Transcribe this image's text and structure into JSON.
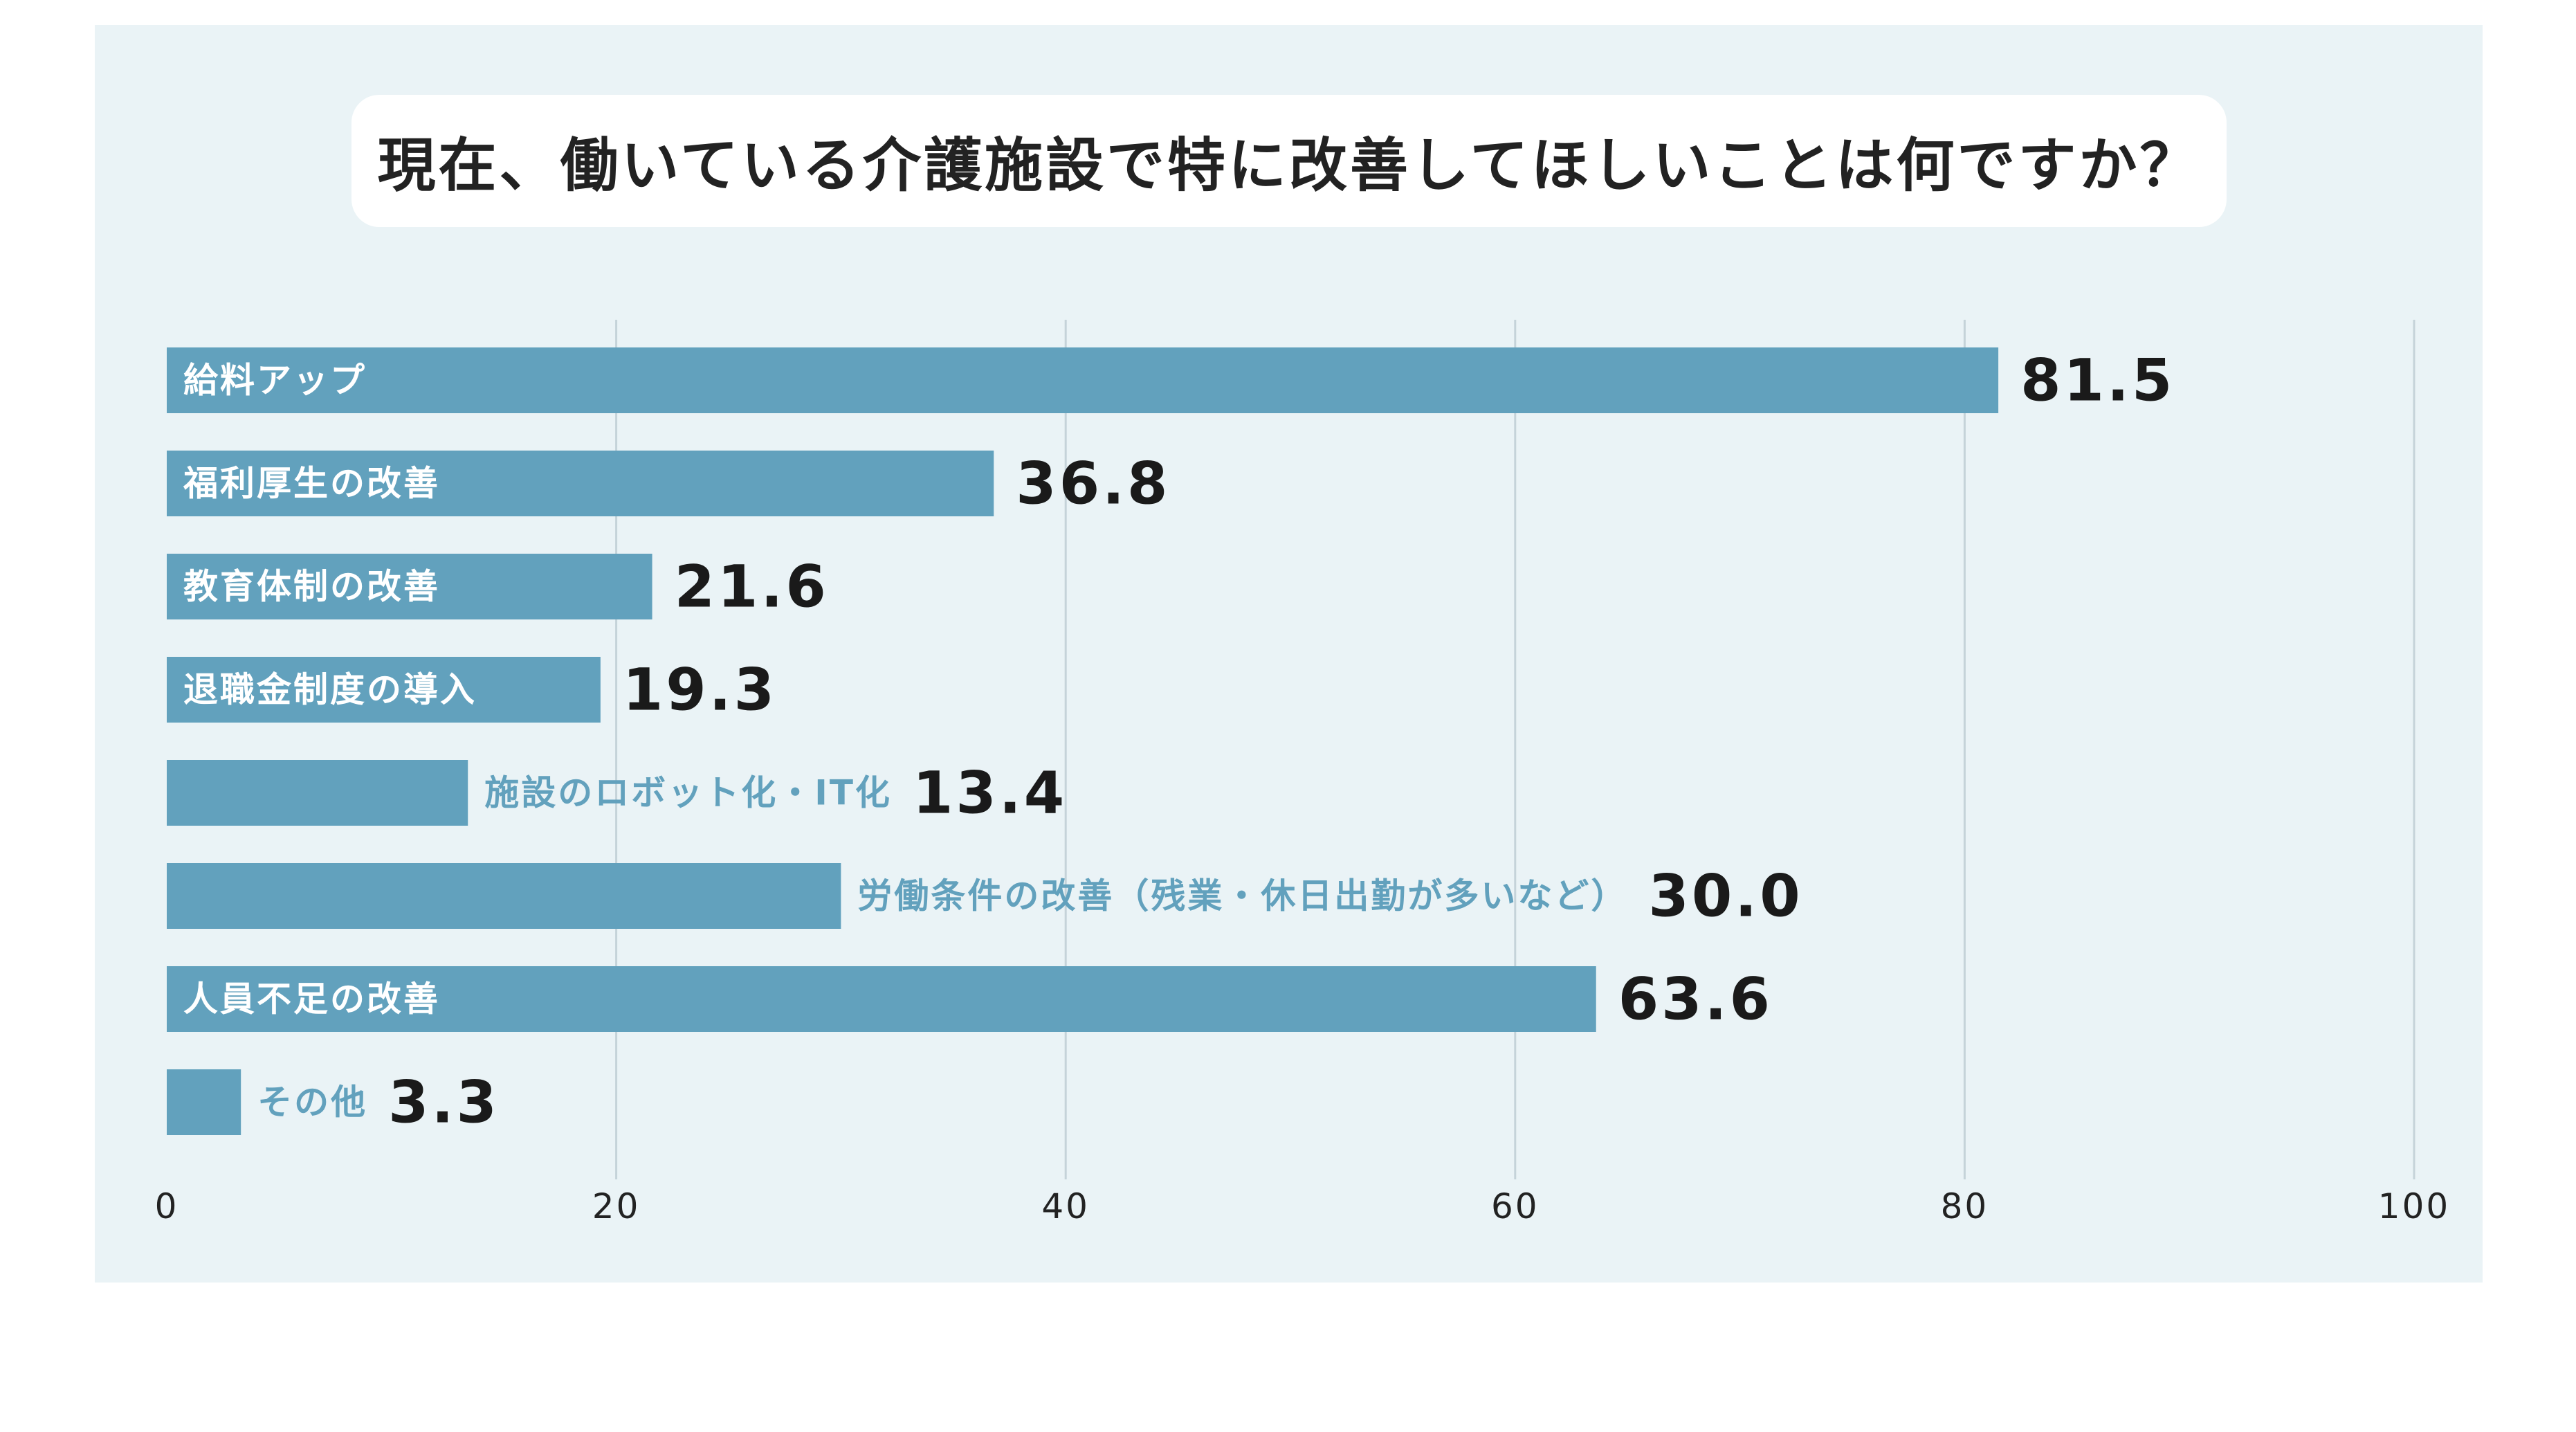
{
  "title": "現在、働いている介護施設で特に改善してほしいことは何ですか？",
  "colors": {
    "panel_background": "#eaf3f6",
    "bar": "#62a1bd",
    "gridline": "#c5d3d9",
    "inside_label": "#ffffff",
    "outside_label": "#62a1bd",
    "value_text": "#1a1a1a",
    "tick_text": "#222222"
  },
  "chart_data": {
    "type": "bar",
    "orientation": "horizontal",
    "title": "現在、働いている介護施設で特に改善してほしいことは何ですか？",
    "xlabel": "",
    "ylabel": "",
    "xlim": [
      0,
      100
    ],
    "xticks": [
      0,
      20,
      40,
      60,
      80,
      100
    ],
    "xtick_labels": [
      "0",
      "20",
      "40",
      "60",
      "80",
      "100"
    ],
    "grid": "vertical",
    "categories": [
      "給料アップ",
      "福利厚生の改善",
      "教育体制の改善",
      "退職金制度の導入",
      "施設のロボット化・IT化",
      "労働条件の改善（残業・休日出勤が多いなど）",
      "人員不足の改善",
      "その他"
    ],
    "values": [
      81.5,
      36.8,
      21.6,
      19.3,
      13.4,
      30.0,
      63.6,
      3.3
    ],
    "value_labels": [
      "81.5",
      "36.8",
      "21.6",
      "19.3",
      "13.4",
      "30.0",
      "63.6",
      "3.3"
    ],
    "label_inside_bar": [
      true,
      true,
      true,
      true,
      false,
      false,
      true,
      false
    ]
  }
}
